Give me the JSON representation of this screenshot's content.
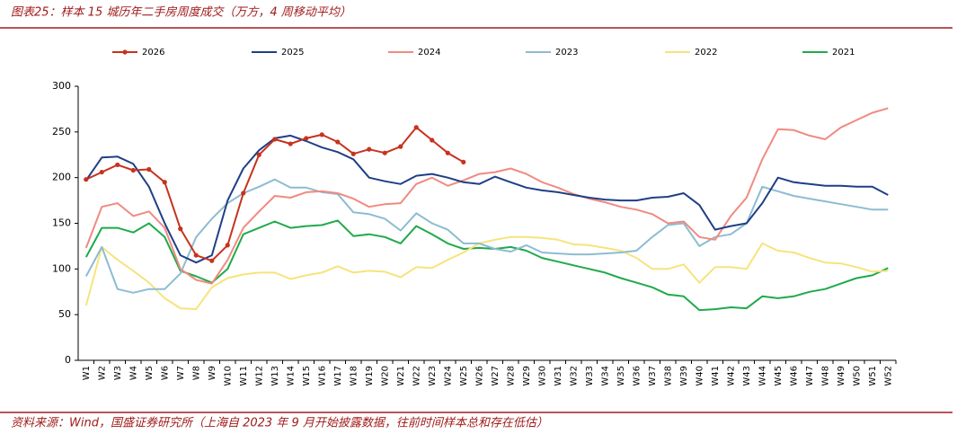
{
  "chart_data": {
    "type": "line",
    "title": "图表25：样本 15 城历年二手房周度成交（万方，4 周移动平均）",
    "source": "资料来源：Wind，国盛证券研究所（上海自 2023 年 9 月开始披露数据，往前时间样本总和存在低估）",
    "categories": [
      "W1",
      "W2",
      "W3",
      "W4",
      "W5",
      "W6",
      "W7",
      "W8",
      "W9",
      "W10",
      "W11",
      "W12",
      "W13",
      "W14",
      "W15",
      "W16",
      "W17",
      "W18",
      "W19",
      "W20",
      "W21",
      "W22",
      "W23",
      "W24",
      "W25",
      "W26",
      "W27",
      "W28",
      "W29",
      "W30",
      "W31",
      "W32",
      "W33",
      "W34",
      "W35",
      "W36",
      "W37",
      "W38",
      "W39",
      "W40",
      "W41",
      "W42",
      "W43",
      "W44",
      "W45",
      "W46",
      "W47",
      "W48",
      "W49",
      "W50",
      "W51",
      "W52"
    ],
    "ylim": [
      0,
      300
    ],
    "yticks": [
      0,
      50,
      100,
      150,
      200,
      250,
      300
    ],
    "series": [
      {
        "name": "2026",
        "color": "#c8321e",
        "markers": true,
        "values": [
          198,
          206,
          214,
          208,
          209,
          195,
          144,
          115,
          109,
          126,
          183,
          225,
          242,
          237,
          243,
          247,
          239,
          226,
          231,
          227,
          234,
          255,
          241,
          227,
          217,
          null,
          null,
          null,
          null,
          null,
          null,
          null,
          null,
          null,
          null,
          null,
          null,
          null,
          null,
          null,
          null,
          null,
          null,
          null,
          null,
          null,
          null,
          null,
          null,
          null,
          null,
          null
        ]
      },
      {
        "name": "2025",
        "color": "#1f3f86",
        "values": [
          197,
          222,
          223,
          215,
          190,
          150,
          115,
          107,
          115,
          175,
          210,
          230,
          243,
          246,
          240,
          233,
          228,
          220,
          200,
          196,
          193,
          202,
          204,
          200,
          195,
          193,
          201,
          195,
          189,
          186,
          184,
          181,
          178,
          176,
          175,
          175,
          178,
          179,
          183,
          170,
          143,
          147,
          150,
          172,
          200,
          195,
          193,
          191,
          191,
          190,
          190,
          181
        ]
      },
      {
        "name": "2024",
        "color": "#f08a80",
        "values": [
          123,
          168,
          172,
          158,
          163,
          145,
          100,
          88,
          84,
          110,
          145,
          163,
          180,
          178,
          184,
          185,
          183,
          177,
          168,
          171,
          172,
          193,
          200,
          191,
          197,
          204,
          206,
          210,
          204,
          195,
          189,
          182,
          177,
          173,
          168,
          165,
          160,
          150,
          152,
          135,
          132,
          158,
          178,
          220,
          253,
          252,
          246,
          242,
          255,
          263,
          271,
          276
        ]
      },
      {
        "name": "2023",
        "color": "#8dbcd2",
        "values": [
          92,
          124,
          78,
          74,
          78,
          78,
          95,
          135,
          155,
          172,
          183,
          190,
          198,
          189,
          189,
          184,
          182,
          162,
          160,
          155,
          142,
          161,
          150,
          143,
          128,
          128,
          122,
          119,
          126,
          118,
          117,
          116,
          116,
          117,
          118,
          120,
          135,
          148,
          150,
          125,
          135,
          138,
          150,
          190,
          185,
          180,
          177,
          174,
          171,
          168,
          165,
          165
        ]
      },
      {
        "name": "2022",
        "color": "#f7e37c",
        "values": [
          60,
          124,
          110,
          98,
          85,
          68,
          57,
          56,
          80,
          90,
          94,
          96,
          96,
          89,
          93,
          96,
          103,
          96,
          98,
          97,
          91,
          102,
          101,
          110,
          118,
          128,
          132,
          135,
          135,
          134,
          132,
          127,
          126,
          123,
          120,
          112,
          100,
          100,
          105,
          85,
          102,
          102,
          100,
          128,
          120,
          118,
          112,
          107,
          106,
          102,
          97,
          98
        ]
      },
      {
        "name": "2021",
        "color": "#1faa4a",
        "values": [
          113,
          145,
          145,
          140,
          150,
          135,
          98,
          92,
          85,
          100,
          138,
          145,
          152,
          145,
          147,
          148,
          153,
          136,
          138,
          135,
          128,
          147,
          138,
          128,
          122,
          123,
          122,
          124,
          120,
          112,
          108,
          104,
          100,
          96,
          90,
          85,
          80,
          72,
          70,
          55,
          56,
          58,
          57,
          70,
          68,
          70,
          75,
          78,
          84,
          90,
          93,
          101
        ]
      }
    ]
  }
}
